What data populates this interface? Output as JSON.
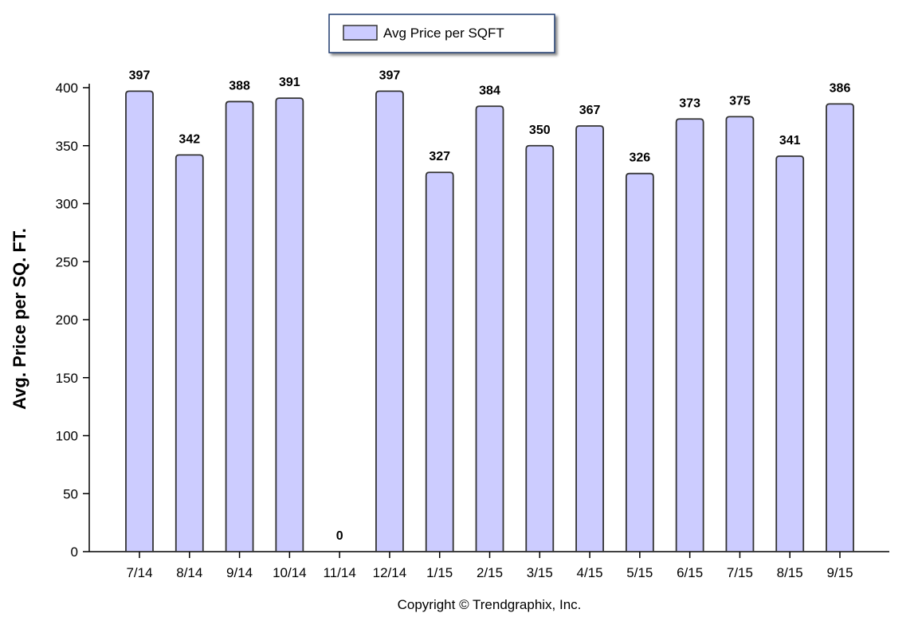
{
  "chart_data": {
    "type": "bar",
    "title": "",
    "xlabel": "",
    "ylabel": "Avg. Price per SQ. FT.",
    "ylim": [
      0,
      400
    ],
    "yticks": [
      0,
      50,
      100,
      150,
      200,
      250,
      300,
      350,
      400
    ],
    "categories": [
      "7/14",
      "8/14",
      "9/14",
      "10/14",
      "11/14",
      "12/14",
      "1/15",
      "2/15",
      "3/15",
      "4/15",
      "5/15",
      "6/15",
      "7/15",
      "8/15",
      "9/15"
    ],
    "series": [
      {
        "name": "Avg Price per SQFT",
        "values": [
          397,
          342,
          388,
          391,
          0,
          397,
          327,
          384,
          350,
          367,
          326,
          373,
          375,
          341,
          386
        ],
        "color": "#ccccff",
        "stroke": "#333333"
      }
    ],
    "grid": false,
    "legend_position": "top-center",
    "footer": "Copyright © Trendgraphix, Inc."
  }
}
